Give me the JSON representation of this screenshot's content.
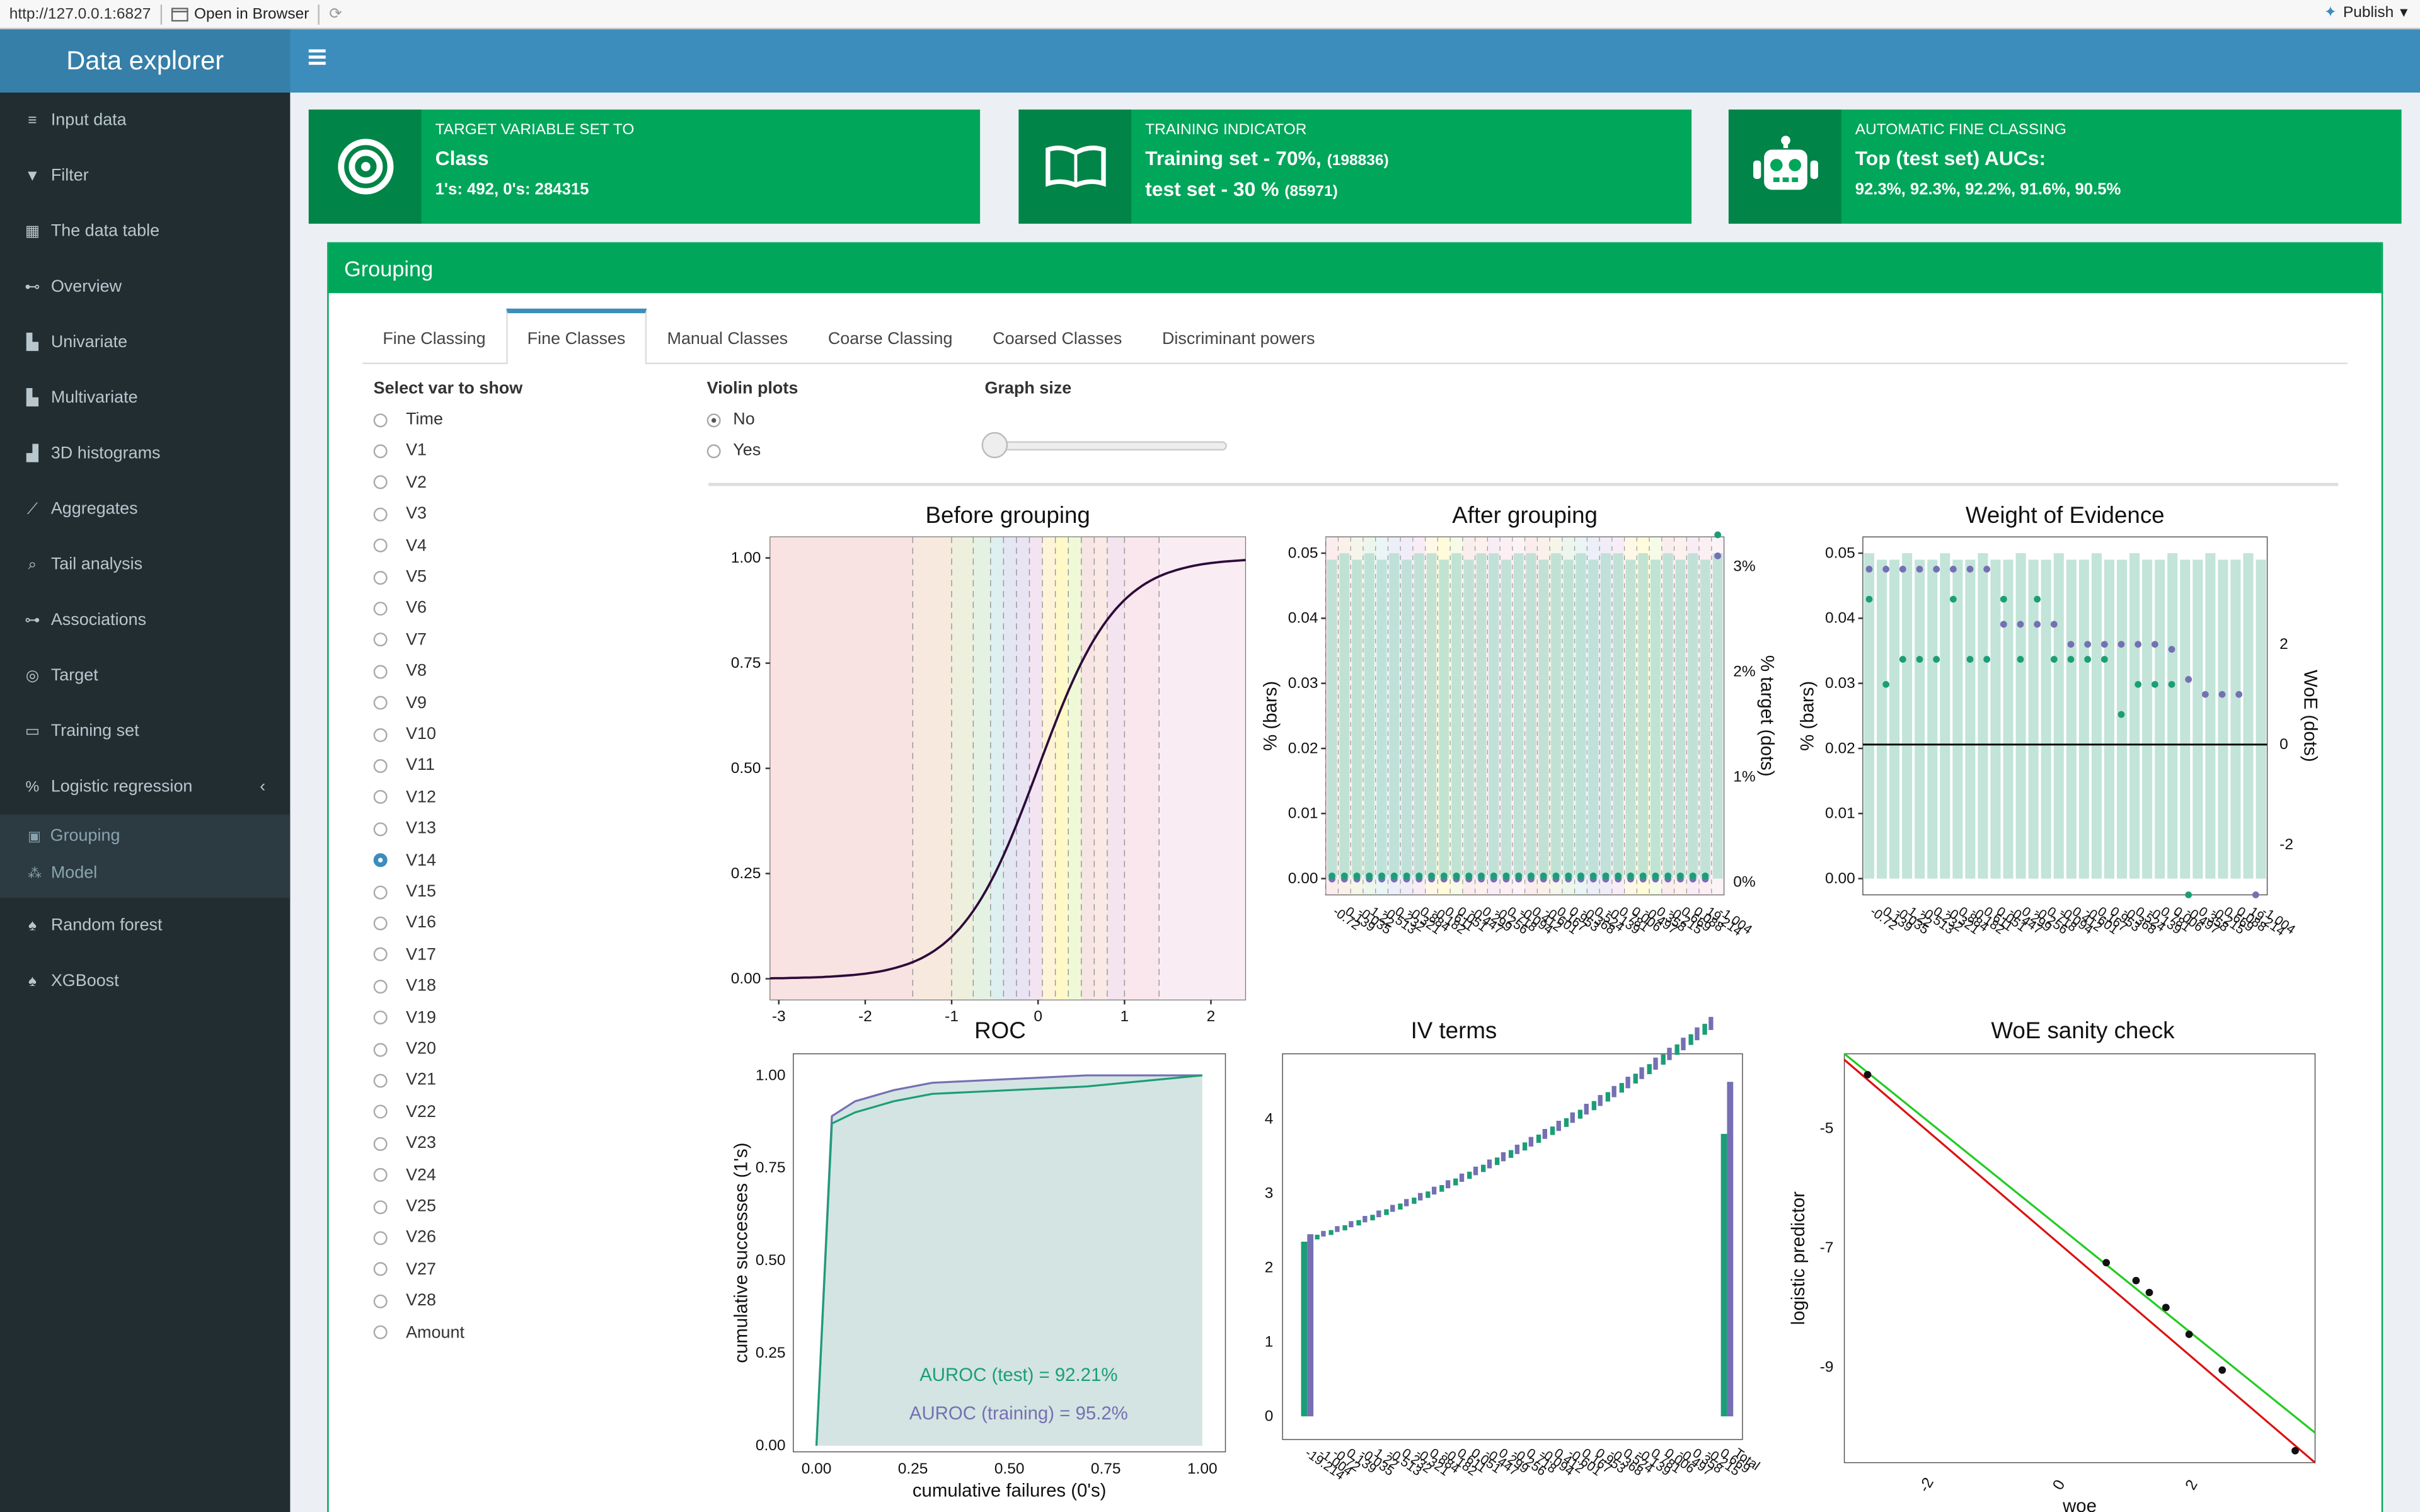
{
  "topbar": {
    "url": "http://127.0.0.1:6827",
    "open_label": "Open in Browser",
    "publish_label": "Publish"
  },
  "app": {
    "title": "Data explorer"
  },
  "sidebar": {
    "items": [
      {
        "label": "Input data",
        "icon": "database-icon",
        "glyph": "≡"
      },
      {
        "label": "Filter",
        "icon": "filter-icon",
        "glyph": "▼"
      },
      {
        "label": "The data table",
        "icon": "table-icon",
        "glyph": "▦"
      },
      {
        "label": "Overview",
        "icon": "binoculars-icon",
        "glyph": "⊷"
      },
      {
        "label": "Univariate",
        "icon": "bar-chart-icon",
        "glyph": "▙"
      },
      {
        "label": "Multivariate",
        "icon": "area-chart-icon",
        "glyph": "▙"
      },
      {
        "label": "3D histograms",
        "icon": "bar-chart-icon",
        "glyph": "▟"
      },
      {
        "label": "Aggregates",
        "icon": "line-chart-icon",
        "glyph": "⟋"
      },
      {
        "label": "Tail analysis",
        "icon": "search-icon",
        "glyph": "⌕"
      },
      {
        "label": "Associations",
        "icon": "sitemap-icon",
        "glyph": "⊶"
      },
      {
        "label": "Target",
        "icon": "bullseye-icon",
        "glyph": "◎"
      },
      {
        "label": "Training set",
        "icon": "book-icon",
        "glyph": "▭"
      },
      {
        "label": "Logistic regression",
        "icon": "percent-icon",
        "glyph": "%"
      }
    ],
    "sub_items": [
      {
        "label": "Grouping",
        "icon": "object-group-icon",
        "glyph": "▣"
      },
      {
        "label": "Model",
        "icon": "magic-icon",
        "glyph": "⁂"
      }
    ],
    "items_after": [
      {
        "label": "Random forest",
        "icon": "tree-icon",
        "glyph": "♠"
      },
      {
        "label": "XGBoost",
        "icon": "tree-icon",
        "glyph": "♠"
      }
    ]
  },
  "info": [
    {
      "title": "TARGET VARIABLE SET TO",
      "line1": "Class",
      "line2": "1's: 492, 0's: 284315",
      "icon": "bullseye-icon"
    },
    {
      "title": "TRAINING INDICATOR",
      "line1": "Training set - 70%,",
      "line1_small": "(198836)",
      "line2": "test set - 30 %",
      "line2_small": "(85971)",
      "icon": "book-open-icon"
    },
    {
      "title": "AUTOMATIC FINE CLASSING",
      "line1": "Top (test set) AUCs:",
      "line2": "92.3%, 92.3%, 92.2%, 91.6%, 90.5%",
      "icon": "robot-icon"
    }
  ],
  "grouping": {
    "title": "Grouping",
    "tabs": [
      "Fine Classing",
      "Fine Classes",
      "Manual Classes",
      "Coarse Classing",
      "Coarsed Classes",
      "Discriminant powers"
    ],
    "active_tab": 1,
    "select_label": "Select var to show",
    "vars": [
      "Time",
      "V1",
      "V2",
      "V3",
      "V4",
      "V5",
      "V6",
      "V7",
      "V8",
      "V9",
      "V10",
      "V11",
      "V12",
      "V13",
      "V14",
      "V15",
      "V16",
      "V17",
      "V18",
      "V19",
      "V20",
      "V21",
      "V22",
      "V23",
      "V24",
      "V25",
      "V26",
      "V27",
      "V28",
      "Amount"
    ],
    "selected_var": "V14",
    "violin_label": "Violin plots",
    "violin_options": [
      "No",
      "Yes"
    ],
    "violin_selected": "No",
    "graph_size_label": "Graph size",
    "graph_size_value": 0
  },
  "colors": {
    "header": "#3c8dbc",
    "sidebar": "#222d32",
    "green": "#00a65a",
    "teal": "#1b9e77",
    "purple": "#7570b3"
  },
  "chart_data": [
    {
      "type": "line",
      "title": "Before grouping",
      "xlim": [
        -3.1,
        2.4
      ],
      "ylim": [
        0,
        1
      ],
      "xticks": [
        "-3",
        "-2",
        "-1",
        "0",
        "1",
        "2"
      ],
      "yticks": [
        "0.00",
        "0.25",
        "0.50",
        "0.75",
        "1.00"
      ],
      "breaks": [
        -1.45,
        -1,
        -0.75,
        -0.55,
        -0.4,
        -0.25,
        -0.1,
        0.05,
        0.2,
        0.35,
        0.5,
        0.65,
        0.8,
        1.0,
        1.4
      ]
    },
    {
      "type": "bar",
      "title": "After grouping",
      "ylabel": "% (bars)",
      "ylabel2": "% target (dots)",
      "yticks": [
        "0.00",
        "0.01",
        "0.02",
        "0.03",
        "0.04",
        "0.05"
      ],
      "yticks2": [
        "0%",
        "1%",
        "2%",
        "3%"
      ],
      "bar_values": [
        0.049,
        0.05,
        0.049,
        0.05,
        0.049,
        0.05,
        0.049,
        0.05,
        0.05,
        0.049,
        0.05,
        0.049,
        0.05,
        0.05,
        0.049,
        0.05,
        0.05,
        0.049,
        0.05,
        0.049,
        0.05,
        0.049,
        0.05,
        0.05,
        0.049,
        0.05,
        0.049,
        0.05,
        0.049,
        0.05,
        0.049,
        0.05
      ],
      "x_tick_labels": [
        "-0.72",
        "0.139",
        "-0.035",
        "1.22",
        "-0.513",
        "0.232",
        "-0.321",
        "0.884",
        "-0.182",
        "0.611",
        "0.051",
        "-0.447",
        "0.299",
        "-0.256",
        "0.718",
        "-0.094",
        "0.412",
        "-0.601",
        "0.167",
        "0.953",
        "-0.368",
        "0.524",
        "-0.139",
        "0.781",
        "0.006",
        "-0.497",
        "0.358",
        "-0.215",
        "0.669",
        "0.088",
        "19.214",
        "-1.004"
      ]
    },
    {
      "type": "bar",
      "title": "Weight of Evidence",
      "ylabel": "% (bars)",
      "ylabel2": "WoE (dots)",
      "yticks": [
        "0.00",
        "0.01",
        "0.02",
        "0.03",
        "0.04",
        "0.05"
      ],
      "yticks2": [
        "-2",
        "0",
        "2"
      ],
      "x_tick_labels": [
        "-0.72",
        "0.139",
        "-0.035",
        "1.22",
        "-0.513",
        "0.232",
        "-0.321",
        "0.884",
        "-0.182",
        "0.611",
        "0.051",
        "-0.447",
        "0.299",
        "-0.256",
        "0.718",
        "-0.094",
        "0.412",
        "-0.601",
        "0.167",
        "0.953",
        "-0.368",
        "0.524",
        "-0.139",
        "0.781",
        "0.006",
        "-0.497",
        "0.358",
        "-0.215",
        "0.669",
        "0.088",
        "19.214",
        "-1.004"
      ]
    },
    {
      "type": "line",
      "title": "ROC",
      "xlabel": "cumulative failures (0's)",
      "ylabel": "cumulative successes (1's)",
      "xticks": [
        "0.00",
        "0.25",
        "0.50",
        "0.75",
        "1.00"
      ],
      "yticks": [
        "0.00",
        "0.25",
        "0.50",
        "0.75",
        "1.00"
      ],
      "annot_test": "AUROC (test) = 92.21%",
      "annot_train": "AUROC (training) = 95.2%",
      "series": [
        {
          "x": [
            0,
            0.04,
            0.1,
            0.2,
            0.3,
            0.5,
            0.7,
            0.9,
            1
          ],
          "y": [
            0,
            0.87,
            0.9,
            0.93,
            0.95,
            0.96,
            0.97,
            0.99,
            1
          ]
        },
        {
          "x": [
            0,
            0.04,
            0.1,
            0.2,
            0.3,
            0.5,
            0.7,
            0.9,
            1
          ],
          "y": [
            0,
            0.89,
            0.93,
            0.96,
            0.98,
            0.99,
            1,
            1,
            1
          ]
        }
      ]
    },
    {
      "type": "bar",
      "title": "IV terms",
      "yticks": [
        "0",
        "1",
        "2",
        "3",
        "4"
      ],
      "x_tick_labels": [
        "-19.214",
        "-1.004",
        "-0.72",
        "0.139",
        "-0.035",
        "1.22",
        "-0.513",
        "0.232",
        "-0.321",
        "0.884",
        "-0.182",
        "0.611",
        "0.051",
        "-0.447",
        "0.299",
        "-0.256",
        "0.718",
        "-0.094",
        "0.412",
        "-0.601",
        "0.167",
        "0.953",
        "-0.368",
        "0.524",
        "-0.139",
        "0.781",
        "0.006",
        "-0.497",
        "0.358",
        "-0.215",
        "0.669",
        "Total"
      ]
    },
    {
      "type": "scatter",
      "title": "WoE sanity check",
      "xlabel": "woe",
      "ylabel": "logistic predictor",
      "xticks": [
        "-2",
        "0",
        "2"
      ],
      "yticks": [
        "-5",
        "-7",
        "-9"
      ],
      "points": {
        "x": [
          -2.95,
          0.65,
          1.1,
          1.3,
          1.55,
          1.9,
          2.4,
          3.5
        ],
        "y": [
          -4.1,
          -7.25,
          -7.55,
          -7.75,
          -8.0,
          -8.45,
          -9.05,
          -10.4
        ]
      }
    }
  ]
}
